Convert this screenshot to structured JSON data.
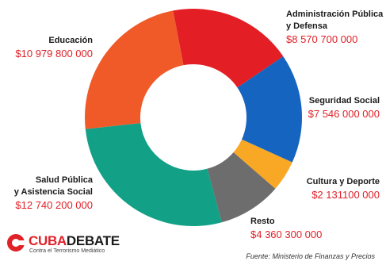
{
  "chart_data": {
    "type": "pie",
    "title": "",
    "donut": true,
    "currency_symbol": "$",
    "slices": [
      {
        "label": "Administración Pública y Defensa",
        "label_lines": [
          "Administración Pública",
          "y Defensa"
        ],
        "value": 8570700000,
        "value_text": "$8 570 700 000",
        "color": "#e31e24"
      },
      {
        "label": "Seguridad Social",
        "label_lines": [
          "Seguridad Social"
        ],
        "value": 7546000000,
        "value_text": "$7 546 000 000",
        "color": "#1565c0"
      },
      {
        "label": "Cultura y Deporte",
        "label_lines": [
          "Cultura y Deporte"
        ],
        "value": 2131100000,
        "value_text": "$2 131100 000",
        "color": "#f9a825"
      },
      {
        "label": "Resto",
        "label_lines": [
          "Resto"
        ],
        "value": 4360300000,
        "value_text": "$4 360 300 000",
        "color": "#6d6d6d"
      },
      {
        "label": "Salud Pública y Asistencia Social",
        "label_lines": [
          "Salud Pública",
          "y Asistencia Social"
        ],
        "value": 12740200000,
        "value_text": "$12 740 200 000",
        "color": "#12a087"
      },
      {
        "label": "Educación",
        "label_lines": [
          "Educación"
        ],
        "value": 10979800000,
        "value_text": "$10 979 800 000",
        "color": "#f05a28"
      }
    ]
  },
  "branding": {
    "logo_part1": "CUBA",
    "logo_part2": "DEBATE",
    "tagline": "Contra el Terrorismo Mediático",
    "logo_color": "#e02128"
  },
  "source_note": "Fuente: Ministerio de Finanzas y Precios"
}
